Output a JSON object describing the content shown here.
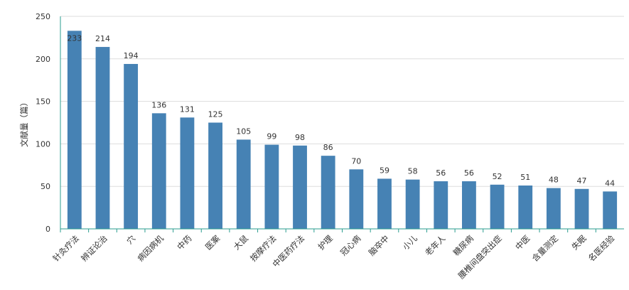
{
  "chart_data": {
    "type": "bar",
    "title": "",
    "xlabel": "",
    "ylabel": "文献量（篇）",
    "ylim": [
      0,
      250
    ],
    "yticks": [
      0,
      50,
      100,
      150,
      200,
      250
    ],
    "grid": true,
    "bar_color": "#4682b4",
    "axis_color": "#2a9d8f",
    "categories": [
      "针灸疗法",
      "辨证论治",
      "穴",
      "病因病机",
      "中药",
      "医案",
      "大鼠",
      "按摩疗法",
      "中医药疗法",
      "护理",
      "冠心病",
      "脑卒中",
      "小儿",
      "老年人",
      "糖尿病",
      "腰椎间盘突出症",
      "中医",
      "含量测定",
      "失眠",
      "名医经验"
    ],
    "values": [
      233,
      214,
      194,
      136,
      131,
      125,
      105,
      99,
      98,
      86,
      70,
      59,
      58,
      56,
      56,
      52,
      51,
      48,
      47,
      44
    ]
  }
}
